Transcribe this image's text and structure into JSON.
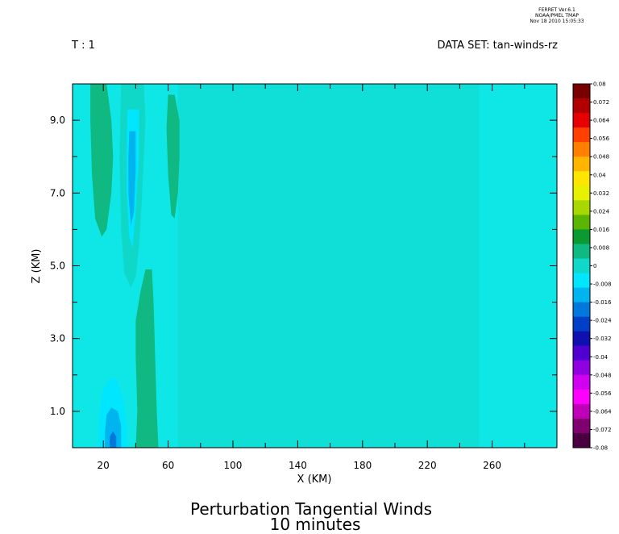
{
  "header": {
    "program": "FERRET  Ver.6.1",
    "org": "NOAA/PMEL TMAP",
    "date": "Nov 18 2010 15:05:33",
    "time_label": "T : 1",
    "dataset_label": "DATA SET: tan-winds-rz"
  },
  "chart_data": {
    "type": "heatmap",
    "title": "Perturbation Tangential Winds",
    "subtitle": "10 minutes",
    "xlabel": "X (KM)",
    "ylabel": "Z (KM)",
    "xlim": [
      1,
      300
    ],
    "ylim": [
      0,
      10
    ],
    "x_ticks": [
      20,
      60,
      100,
      140,
      180,
      220,
      260
    ],
    "y_ticks": [
      "1.0",
      "3.0",
      "5.0",
      "7.0",
      "9.0"
    ],
    "colorbar": {
      "min": -0.08,
      "max": 0.08,
      "labels": [
        "0.08",
        "0.072",
        "0.064",
        "0.056",
        "0.048",
        "0.04",
        "0.032",
        "0.024",
        "0.016",
        "0.008",
        "0",
        "-0.008",
        "-0.016",
        "-0.024",
        "-0.032",
        "-0.04",
        "-0.048",
        "-0.056",
        "-0.064",
        "-0.072",
        "-0.08"
      ],
      "colors": [
        "#7a0000",
        "#b20000",
        "#e60000",
        "#ff4000",
        "#ff8000",
        "#ffb400",
        "#ffe600",
        "#e6f000",
        "#a8d800",
        "#5ab400",
        "#0a9a30",
        "#10b882",
        "#10d8c8",
        "#00e6ff",
        "#00b4f0",
        "#0078dc",
        "#0040c8",
        "#1010b0",
        "#5000d0",
        "#9000e0",
        "#d000f0",
        "#ff00ff",
        "#c000b8",
        "#800070",
        "#4a0040"
      ]
    },
    "regions": [
      {
        "value": 0.006,
        "points": [
          [
            12,
            10
          ],
          [
            22,
            10
          ],
          [
            25,
            9
          ],
          [
            26,
            8
          ],
          [
            25,
            7
          ],
          [
            22,
            6
          ],
          [
            19,
            5.8
          ],
          [
            15,
            6.3
          ],
          [
            13,
            7.5
          ],
          [
            12,
            9
          ]
        ]
      },
      {
        "value": 0.004,
        "points": [
          [
            64,
            9.7
          ],
          [
            67,
            9
          ],
          [
            67,
            8
          ],
          [
            66,
            7
          ],
          [
            64,
            6.3
          ],
          [
            62,
            6.4
          ],
          [
            60,
            7.5
          ],
          [
            59,
            8.8
          ],
          [
            60,
            9.7
          ]
        ]
      },
      {
        "value": -0.003,
        "points": [
          [
            31,
            10
          ],
          [
            45,
            10
          ],
          [
            46,
            9
          ],
          [
            44,
            7
          ],
          [
            42,
            5.5
          ],
          [
            40,
            4.7
          ],
          [
            37,
            4.4
          ],
          [
            33,
            4.8
          ],
          [
            31,
            6
          ],
          [
            30,
            8
          ]
        ]
      },
      {
        "value": -0.008,
        "points": [
          [
            35,
            9.3
          ],
          [
            42,
            9.3
          ],
          [
            42,
            8
          ],
          [
            40,
            6.5
          ],
          [
            38,
            5.5
          ],
          [
            36,
            5.8
          ],
          [
            34.5,
            7
          ],
          [
            34.5,
            8.5
          ]
        ]
      },
      {
        "value": -0.013,
        "points": [
          [
            36,
            8.7
          ],
          [
            40,
            8.7
          ],
          [
            40,
            7.6
          ],
          [
            39,
            6.5
          ],
          [
            37,
            6.1
          ],
          [
            35.5,
            7
          ],
          [
            35.5,
            8
          ]
        ]
      },
      {
        "value": 0.006,
        "points": [
          [
            46,
            4.9
          ],
          [
            50,
            4.9
          ],
          [
            51,
            4
          ],
          [
            52,
            2.5
          ],
          [
            53,
            1
          ],
          [
            54,
            0
          ],
          [
            40,
            0
          ],
          [
            41,
            1
          ],
          [
            40,
            2.5
          ],
          [
            40,
            3.5
          ],
          [
            43,
            4.3
          ]
        ]
      },
      {
        "value": -0.006,
        "points": [
          [
            17,
            0
          ],
          [
            35,
            0
          ],
          [
            34,
            0.8
          ],
          [
            32,
            1.4
          ],
          [
            28,
            1.9
          ],
          [
            24,
            1.9
          ],
          [
            20,
            1.6
          ],
          [
            18,
            1.1
          ],
          [
            17,
            0.5
          ]
        ]
      },
      {
        "value": -0.012,
        "points": [
          [
            21,
            0
          ],
          [
            31,
            0
          ],
          [
            31,
            0.6
          ],
          [
            29,
            1
          ],
          [
            25,
            1.1
          ],
          [
            22,
            0.9
          ],
          [
            21,
            0.4
          ]
        ]
      },
      {
        "value": -0.017,
        "points": [
          [
            24,
            0
          ],
          [
            28,
            0
          ],
          [
            28,
            0.3
          ],
          [
            26,
            0.45
          ],
          [
            24,
            0.3
          ]
        ]
      }
    ],
    "stripes": [
      {
        "x": [
          66,
          150
        ],
        "value": -0.001
      },
      {
        "x": [
          150,
          156
        ],
        "value": 0.0015
      },
      {
        "x": [
          156,
          244
        ],
        "value": -0.0005
      },
      {
        "x": [
          244,
          252
        ],
        "value": 0.001
      }
    ]
  }
}
